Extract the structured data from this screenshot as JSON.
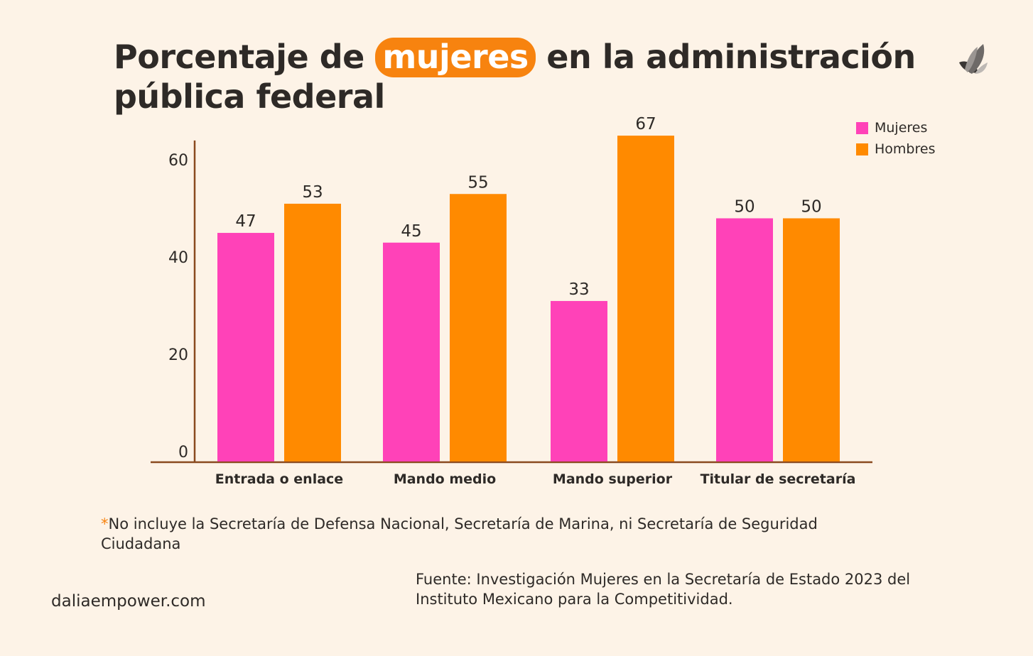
{
  "title": {
    "before": "Porcentaje de ",
    "highlight": "mujeres",
    "after": " en la administración pública federal"
  },
  "note": {
    "asterisk": "*",
    "text": "No incluye la Secretaría de Defensa Nacional, Secretaría de Marina, ni Secretaría de Seguridad Ciudadana"
  },
  "source": "Fuente: Investigación Mujeres en la Secretaría de Estado 2023 del Instituto Mexicano para la Competitividad.",
  "website": "daliaempower.com",
  "logo_icon": "dalia-leaf-icon",
  "colors": {
    "mujeres": "#ff42b8",
    "hombres": "#ff8a00",
    "axis": "#8a4a1f",
    "highlight": "#f7830f",
    "text": "#2e2a27",
    "background": "#fdf3e7"
  },
  "chart_data": {
    "type": "bar",
    "categories": [
      "Entrada o enlace",
      "Mando medio",
      "Mando superior",
      "Titular de secretaría"
    ],
    "series": [
      {
        "name": "Mujeres",
        "values": [
          47,
          45,
          33,
          50
        ]
      },
      {
        "name": "Hombres",
        "values": [
          53,
          55,
          67,
          50
        ]
      }
    ],
    "yticks": [
      0,
      20,
      40,
      60
    ],
    "ylim": [
      0,
      66
    ],
    "legend": "top-right",
    "grid": false,
    "data_labels": true
  }
}
